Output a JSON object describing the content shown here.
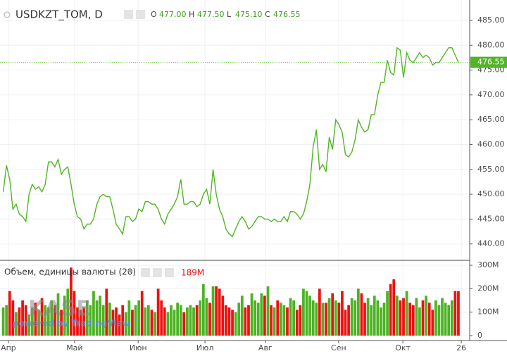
{
  "chart_data": {
    "type": "line",
    "title": "USDKZT_TOM, D",
    "ohlc": [
      {
        "key": "O",
        "price": {
          "value": 477.0,
          "label": "477.00"
        }
      },
      {
        "key": "H",
        "price": {
          "value": 477.5,
          "label": "477.50"
        }
      },
      {
        "key": "L",
        "price": {
          "value": 475.1,
          "label": "475.10"
        }
      },
      {
        "key": "C",
        "price": {
          "value": 476.55,
          "label": "476.55"
        }
      }
    ],
    "color": "#52b526",
    "values": [
      450.5,
      455.8,
      453,
      447,
      448,
      446,
      445.5,
      444.5,
      450,
      452,
      451,
      451.5,
      450.5,
      452,
      456.5,
      456.5,
      455.5,
      457,
      454,
      455,
      455.5,
      452,
      448,
      445.5,
      445,
      443,
      444,
      444,
      445,
      448,
      449.5,
      450,
      449.5,
      449.5,
      447,
      444,
      443,
      442,
      445.5,
      445.5,
      444.5,
      445,
      447,
      446.5,
      448.5,
      448.5,
      448,
      448,
      447,
      445,
      444,
      446,
      447,
      448,
      449.5,
      453,
      448,
      448,
      448.5,
      448.5,
      447.5,
      448,
      450,
      451,
      448,
      455,
      450,
      447,
      445.5,
      443,
      442,
      441.5,
      443,
      444.5,
      445.5,
      444.5,
      443,
      443.5,
      444.5,
      445.5,
      445.5,
      445,
      445,
      444.5,
      445,
      444.5,
      444.5,
      445.5,
      444.5,
      446.5,
      446.5,
      446,
      445,
      446,
      448.5,
      452,
      459.5,
      463,
      455,
      456,
      454.5,
      461.5,
      459,
      465,
      464,
      462.5,
      458,
      457.5,
      458.5,
      461,
      465,
      463.5,
      462.5,
      463,
      466,
      466,
      470,
      472.5,
      472.5,
      477,
      474.5,
      474,
      479.5,
      479,
      473.5,
      478.5,
      477,
      476.5,
      477.5,
      478.5,
      477.5,
      478,
      477.5,
      476,
      476.5,
      476.5,
      477.5,
      478.5,
      479.5,
      479.5,
      478,
      476.55
    ],
    "xlim": [
      -1,
      144.5
    ],
    "xticks": [
      {
        "value": 1.6,
        "label": "Апр"
      },
      {
        "value": 22.1,
        "label": "Май"
      },
      {
        "value": 41.8,
        "label": "Июн"
      },
      {
        "value": 62.5,
        "label": "Июл"
      },
      {
        "value": 81.2,
        "label": "Авг"
      },
      {
        "value": 103.9,
        "label": "Сен"
      },
      {
        "value": 123.8,
        "label": "Окт"
      },
      {
        "value": 141.9,
        "label": "26"
      }
    ],
    "ylim": [
      436.7,
      489.1
    ],
    "yticks": [
      {
        "value": 440,
        "label": "440.00"
      },
      {
        "value": 445,
        "label": "445.00"
      },
      {
        "value": 450,
        "label": "450.00"
      },
      {
        "value": 455,
        "label": "455.00"
      },
      {
        "value": 460,
        "label": "460.00"
      },
      {
        "value": 465,
        "label": "465.00"
      },
      {
        "value": 470,
        "label": "470.00"
      },
      {
        "value": 475,
        "label": "475.00"
      },
      {
        "value": 480,
        "label": "480.00"
      },
      {
        "value": 485,
        "label": "485.00"
      }
    ],
    "grid": true,
    "watermark": "KASE",
    "watermark_sub": "powered by TradingView",
    "volume": {
      "type": "bar",
      "title": "Объем, единицы валюты (20)",
      "last": {
        "value": 189,
        "label": "189M"
      },
      "up_color": "#4db324",
      "down_color": "#ee1111",
      "values": [
        120,
        130,
        190,
        150,
        100,
        120,
        150,
        130,
        90,
        120,
        140,
        110,
        160,
        130,
        120,
        150,
        130,
        180,
        110,
        170,
        200,
        290,
        190,
        120,
        110,
        120,
        150,
        130,
        190,
        150,
        170,
        130,
        200,
        140,
        110,
        120,
        90,
        130,
        100,
        150,
        110,
        130,
        150,
        190,
        120,
        130,
        110,
        100,
        200,
        150,
        120,
        100,
        130,
        110,
        140,
        130,
        100,
        120,
        130,
        120,
        130,
        150,
        220,
        160,
        140,
        210,
        210,
        200,
        170,
        130,
        120,
        110,
        100,
        140,
        170,
        120,
        130,
        180,
        150,
        140,
        180,
        170,
        210,
        130,
        120,
        150,
        140,
        130,
        120,
        160,
        150,
        110,
        130,
        200,
        190,
        170,
        150,
        140,
        200,
        140,
        140,
        160,
        180,
        150,
        140,
        190,
        110,
        130,
        160,
        150,
        200,
        180,
        140,
        160,
        130,
        170,
        150,
        120,
        140,
        190,
        220,
        240,
        170,
        150,
        160,
        190,
        140,
        130,
        160,
        120,
        150,
        170,
        140,
        110,
        150,
        130,
        160,
        140,
        130,
        150,
        190,
        189
      ],
      "ylim": [
        -21,
        321
      ],
      "yticks": [
        0,
        {
          "value": 100,
          "label": "100M"
        },
        {
          "value": 200,
          "label": "200M"
        },
        {
          "value": 300,
          "label": "300M"
        }
      ]
    }
  }
}
